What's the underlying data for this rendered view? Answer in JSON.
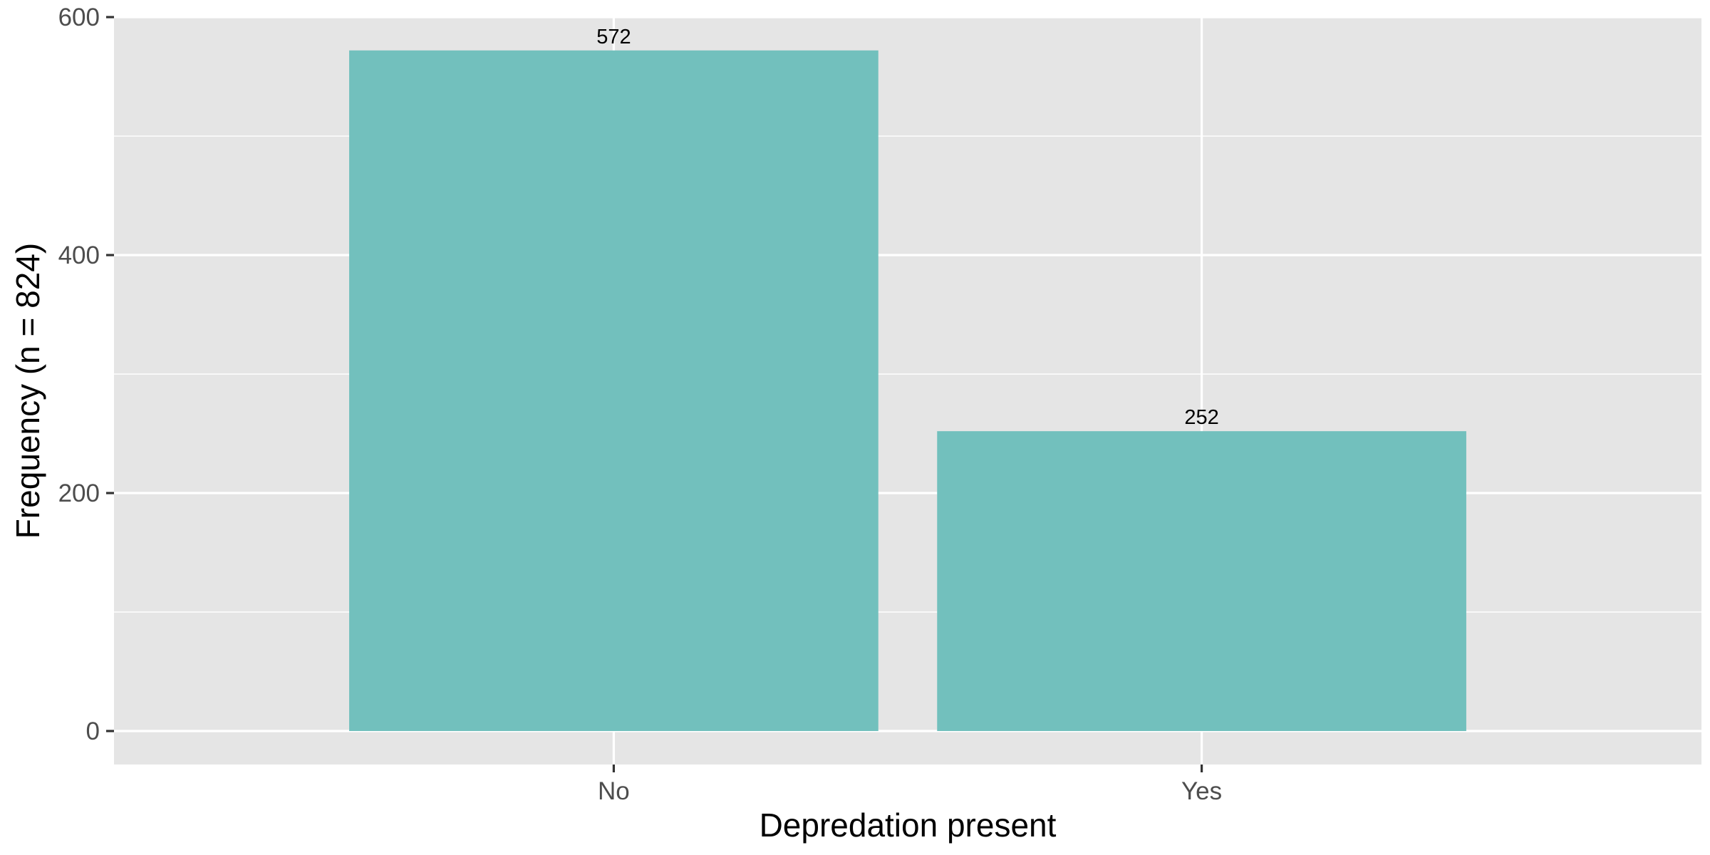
{
  "chart_data": {
    "type": "bar",
    "categories": [
      "No",
      "Yes"
    ],
    "values": [
      572,
      252
    ],
    "data_labels": [
      "572",
      "252"
    ],
    "xlabel": "Depredation present",
    "ylabel": "Frequency (n = 824)",
    "ylim": [
      0,
      600
    ],
    "y_ticks": [
      0,
      200,
      400,
      600
    ],
    "y_tick_labels": [
      "0",
      "200",
      "400",
      "600"
    ],
    "grid": true,
    "legend": "none",
    "colors": {
      "bar_fill": "#72c0bd",
      "panel_background": "#e5e5e5",
      "grid_line": "#ffffff",
      "tick_text": "#4d4d4d",
      "axis_title_text": "#000000",
      "tick_mark": "#333333"
    }
  }
}
